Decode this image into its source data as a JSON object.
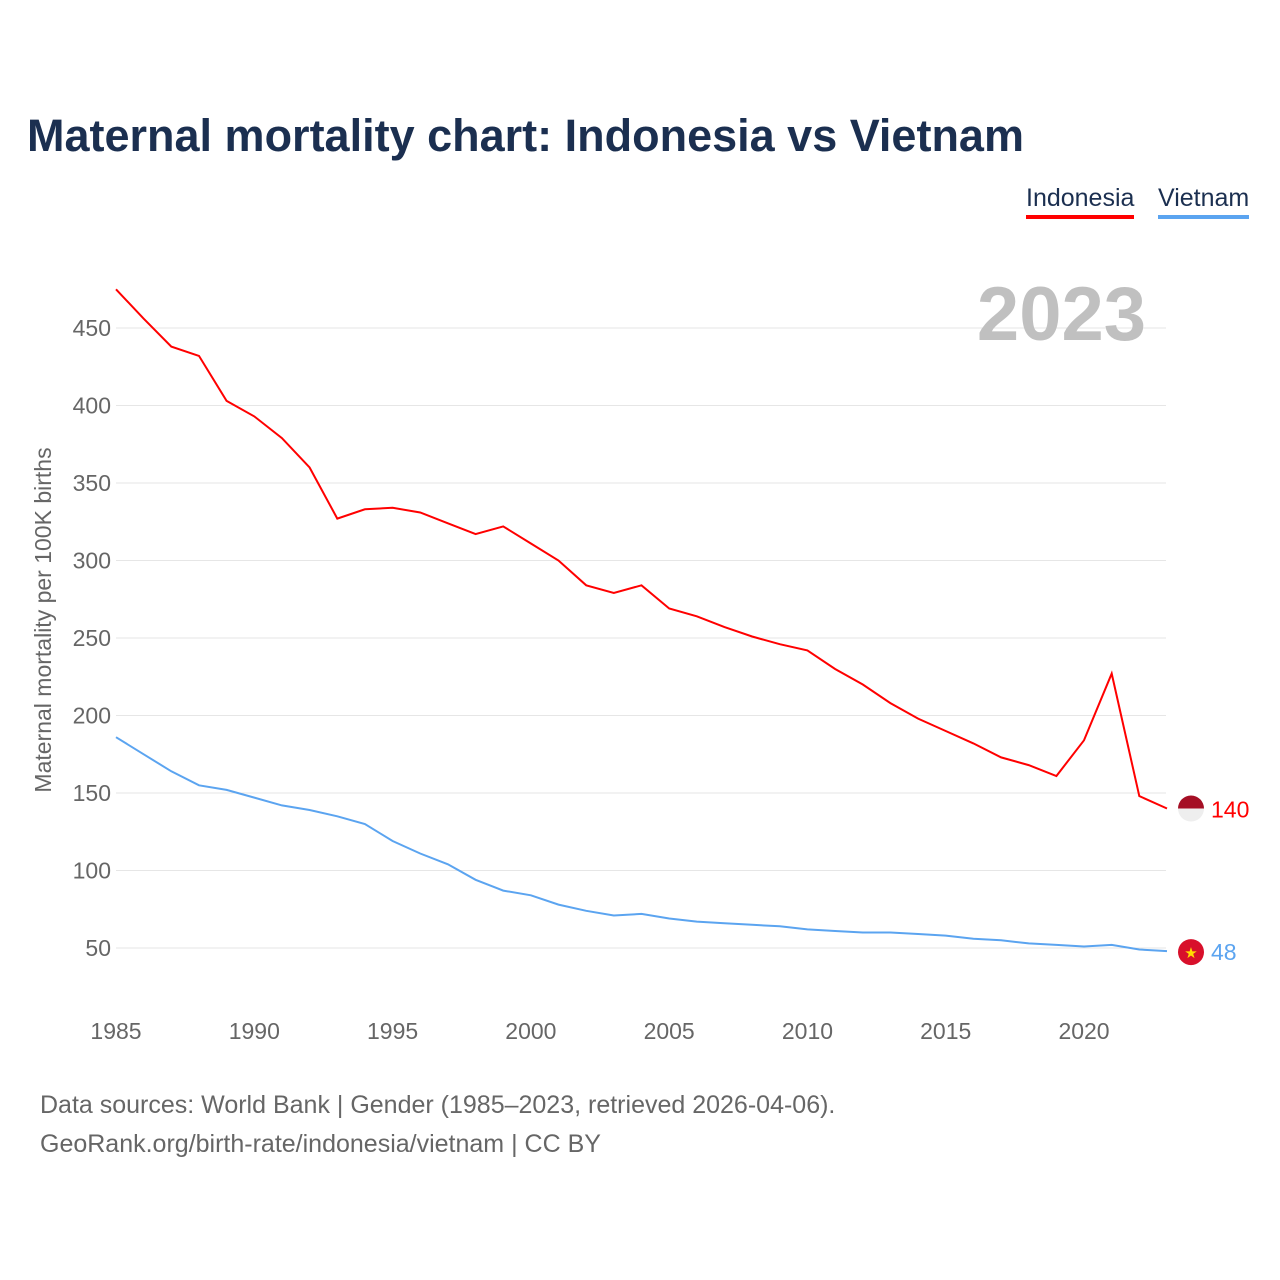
{
  "chart_data": {
    "type": "line",
    "title": "Maternal mortality chart: Indonesia vs Vietnam",
    "ylabel": "Maternal mortality per 100K births",
    "xlabel": "",
    "year_label": "2023",
    "xlim": [
      1985,
      2023
    ],
    "ylim": [
      20,
      480
    ],
    "x_ticks": [
      1985,
      1990,
      1995,
      2000,
      2005,
      2010,
      2015,
      2020
    ],
    "y_ticks": [
      50,
      100,
      150,
      200,
      250,
      300,
      350,
      400,
      450
    ],
    "grid": true,
    "legend_position": "top-right",
    "x": [
      1985,
      1986,
      1987,
      1988,
      1989,
      1990,
      1991,
      1992,
      1993,
      1994,
      1995,
      1996,
      1997,
      1998,
      1999,
      2000,
      2001,
      2002,
      2003,
      2004,
      2005,
      2006,
      2007,
      2008,
      2009,
      2010,
      2011,
      2012,
      2013,
      2014,
      2015,
      2016,
      2017,
      2018,
      2019,
      2020,
      2021,
      2022,
      2023
    ],
    "series": [
      {
        "name": "Indonesia",
        "color": "#ff0000",
        "end_label": "140",
        "values": [
          475,
          456,
          438,
          432,
          403,
          393,
          379,
          360,
          327,
          333,
          334,
          331,
          324,
          317,
          322,
          311,
          300,
          284,
          279,
          284,
          269,
          264,
          257,
          251,
          246,
          242,
          230,
          220,
          208,
          198,
          190,
          182,
          173,
          168,
          161,
          184,
          227,
          148,
          140
        ]
      },
      {
        "name": "Vietnam",
        "color": "#5ba4f0",
        "end_label": "48",
        "values": [
          186,
          175,
          164,
          155,
          152,
          147,
          142,
          139,
          135,
          130,
          119,
          111,
          104,
          94,
          87,
          84,
          78,
          74,
          71,
          72,
          69,
          67,
          66,
          65,
          64,
          62,
          61,
          60,
          60,
          59,
          58,
          56,
          55,
          53,
          52,
          51,
          52,
          49,
          48
        ]
      }
    ]
  },
  "footer": {
    "line1": "Data sources: World Bank | Gender (1985–2023, retrieved 2026-04-06).",
    "line2": "GeoRank.org/birth-rate/indonesia/vietnam | CC BY"
  }
}
